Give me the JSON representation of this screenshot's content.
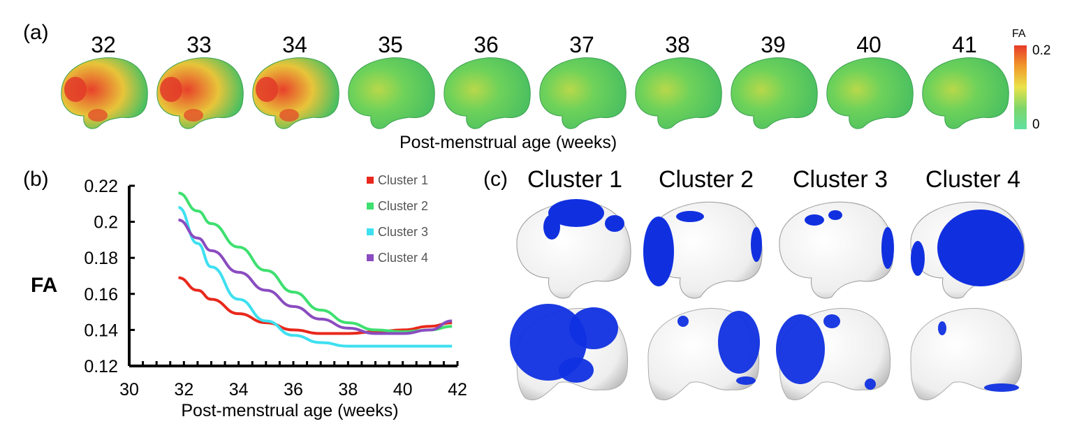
{
  "panel_a": {
    "label": "(a)",
    "weeks": [
      "32",
      "33",
      "34",
      "35",
      "36",
      "37",
      "38",
      "39",
      "40",
      "41"
    ],
    "xlabel": "Post-menstrual age (weeks)",
    "colorbar": {
      "title": "FA",
      "max": "0.2",
      "min": "0",
      "colors": [
        "#e83a2a",
        "#f09a2a",
        "#e9e34a",
        "#7ed66a",
        "#5fe0a0"
      ]
    },
    "brain_warmth": [
      0.85,
      0.8,
      0.65,
      0.3,
      0.25,
      0.2,
      0.22,
      0.18,
      0.15,
      0.2
    ]
  },
  "panel_b": {
    "label": "(b)"
  },
  "panel_c": {
    "label": "(c)",
    "clusters": [
      "Cluster 1",
      "Cluster 2",
      "Cluster 3",
      "Cluster 4"
    ],
    "highlight_color": "#1030e0"
  },
  "chart_data": {
    "type": "line",
    "title": "",
    "xlabel": "Post-menstrual age (weeks)",
    "ylabel": "FA",
    "xlim": [
      30,
      42
    ],
    "ylim": [
      0.12,
      0.22
    ],
    "xticks": [
      "30",
      "32",
      "34",
      "36",
      "38",
      "40",
      "42"
    ],
    "yticks": [
      "0.12",
      "0.14",
      "0.16",
      "0.18",
      "0.2",
      "0.22"
    ],
    "legend_position": "top-right",
    "series": [
      {
        "name": "Cluster 1",
        "color": "#e8281c",
        "x": [
          31.8,
          32.5,
          33,
          34,
          35,
          36,
          37,
          38,
          39,
          40,
          41,
          41.8
        ],
        "y": [
          0.169,
          0.162,
          0.157,
          0.149,
          0.144,
          0.14,
          0.138,
          0.138,
          0.139,
          0.14,
          0.142,
          0.144
        ]
      },
      {
        "name": "Cluster 2",
        "color": "#3ee070",
        "x": [
          31.8,
          32.5,
          33,
          34,
          35,
          36,
          37,
          38,
          39,
          40,
          41,
          41.8
        ],
        "y": [
          0.216,
          0.206,
          0.199,
          0.186,
          0.173,
          0.161,
          0.151,
          0.144,
          0.14,
          0.139,
          0.14,
          0.142
        ]
      },
      {
        "name": "Cluster 3",
        "color": "#3ee0f0",
        "x": [
          31.8,
          32.5,
          33,
          34,
          35,
          36,
          37,
          38,
          39,
          40,
          41,
          41.8
        ],
        "y": [
          0.208,
          0.188,
          0.175,
          0.157,
          0.145,
          0.137,
          0.133,
          0.131,
          0.131,
          0.131,
          0.131,
          0.131
        ]
      },
      {
        "name": "Cluster 4",
        "color": "#8a4cc0",
        "x": [
          31.8,
          32.5,
          33,
          34,
          35,
          36,
          37,
          38,
          39,
          40,
          41,
          41.8
        ],
        "y": [
          0.201,
          0.191,
          0.184,
          0.172,
          0.162,
          0.153,
          0.146,
          0.141,
          0.138,
          0.138,
          0.14,
          0.145
        ]
      }
    ]
  }
}
